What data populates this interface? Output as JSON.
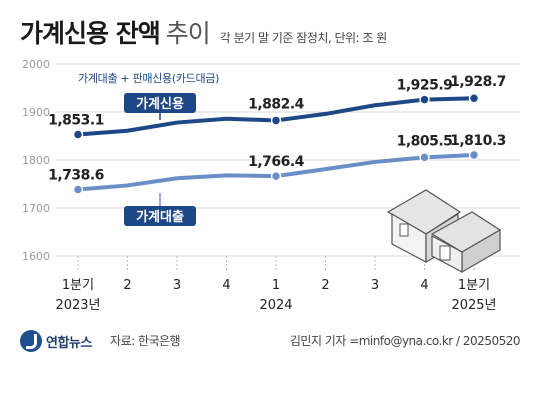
{
  "header": {
    "title_main": "가계신용 잔액",
    "title_sub": "추이",
    "note": "각 분기 말 기준 잠정치, 단위: 조 원"
  },
  "chart_data": {
    "type": "line",
    "ylim": [
      1600,
      2000
    ],
    "yticks": [
      "1600",
      "1700",
      "1800",
      "1900",
      "2000"
    ],
    "grid": true,
    "x_ticks": [
      {
        "top": "1분기",
        "bottom": "2023년"
      },
      {
        "top": "2",
        "bottom": ""
      },
      {
        "top": "3",
        "bottom": ""
      },
      {
        "top": "4",
        "bottom": ""
      },
      {
        "top": "1",
        "bottom": "2024"
      },
      {
        "top": "2",
        "bottom": ""
      },
      {
        "top": "3",
        "bottom": ""
      },
      {
        "top": "4",
        "bottom": ""
      },
      {
        "top": "1분기",
        "bottom": "2025년"
      }
    ],
    "series": [
      {
        "name": "가계신용",
        "note": "가계대출 + 판매신용(카드대금)",
        "color": "#1d4787",
        "values": [
          1853.1,
          1861,
          1878,
          1886,
          1882.4,
          1896,
          1914,
          1925.9,
          1928.7
        ],
        "labeled_indices": [
          0,
          4,
          7,
          8
        ],
        "labels": [
          "1,853.1",
          "1,882.4",
          "1,925.9",
          "1,928.7"
        ]
      },
      {
        "name": "가계대출",
        "color": "#6a8fc8",
        "values": [
          1738.6,
          1747,
          1762,
          1768,
          1766.4,
          1781,
          1796,
          1805.5,
          1810.3
        ],
        "labeled_indices": [
          0,
          4,
          7,
          8
        ],
        "labels": [
          "1,738.6",
          "1,766.4",
          "1,805.5",
          "1,810.3"
        ]
      }
    ]
  },
  "footer": {
    "logo": "연합뉴스",
    "source": "자료: 한국은행",
    "credit": "김민지 기자 =minfo@yna.co.kr / 20250520"
  }
}
